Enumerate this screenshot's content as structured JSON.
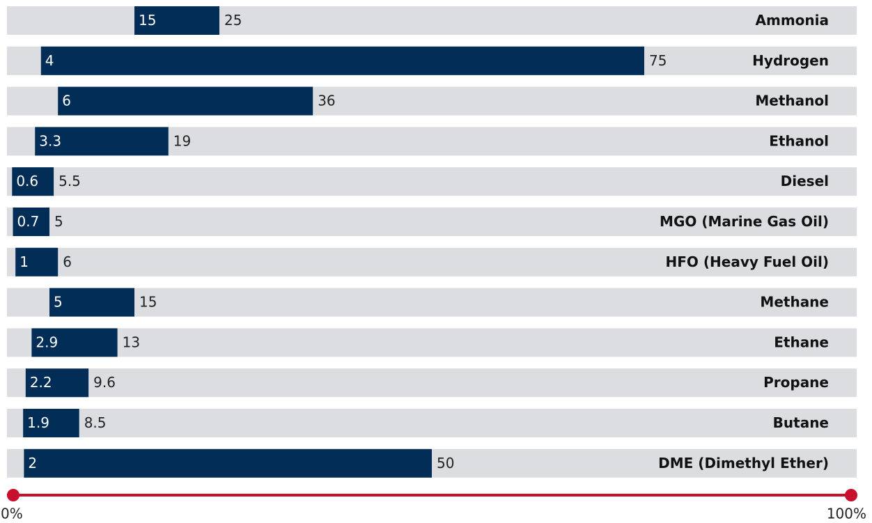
{
  "chart_data": {
    "type": "range-bar",
    "categories": [
      "Ammonia",
      "Hydrogen",
      "Methanol",
      "Ethanol",
      "Diesel",
      "MGO (Marine Gas Oil)",
      "HFO (Heavy Fuel Oil)",
      "Methane",
      "Ethane",
      "Propane",
      "Butane",
      "DME (Dimethyl Ether)"
    ],
    "low": [
      15,
      4,
      6,
      3.3,
      0.6,
      0.7,
      1,
      5,
      2.9,
      2.2,
      1.9,
      2
    ],
    "high": [
      25,
      75,
      36,
      19,
      5.5,
      5,
      6,
      15,
      13,
      9.6,
      8.5,
      50
    ],
    "color": "#012d57",
    "track_color": "#dcdde0",
    "axis_color": "#c8102e",
    "xlim": [
      0,
      100
    ],
    "xticks": [
      {
        "value": 0,
        "label": "0%"
      },
      {
        "value": 100,
        "label": "100%"
      }
    ]
  }
}
